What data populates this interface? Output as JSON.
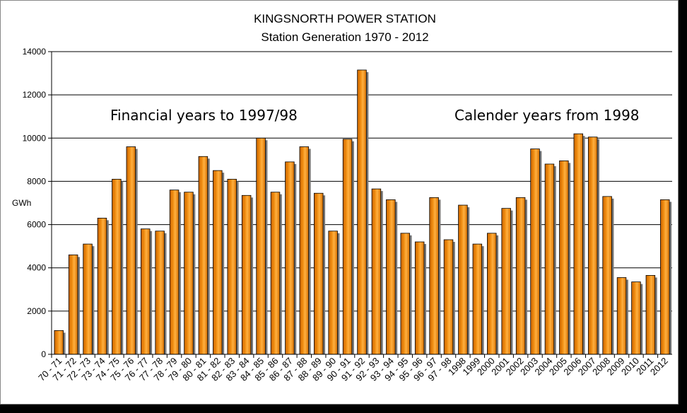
{
  "chart_data": {
    "type": "bar",
    "title": "KINGSNORTH POWER STATION",
    "subtitle": "Station Generation  1970 - 2012",
    "ylabel": "GWh",
    "xlabel": "",
    "ylim": [
      0,
      14000
    ],
    "yticks": [
      "0",
      "2000",
      "4000",
      "6000",
      "8000",
      "10000",
      "12000",
      "14000"
    ],
    "grid": true,
    "bar_color": "#f08c10",
    "annotations": [
      "Financial years to 1997/98",
      "Calender years from 1998"
    ],
    "categories": [
      "70 - 71",
      "71 - 72",
      "72 - 73",
      "73 - 74",
      "74 - 75",
      "75 - 76",
      "76 - 77",
      "77 - 78",
      "78 - 79",
      "79 - 80",
      "80 - 81",
      "81 - 82",
      "82 - 83",
      "83 - 84",
      "84 - 85",
      "85 - 86",
      "86 - 87",
      "87 - 88",
      "88 - 89",
      "89 - 90",
      "90 - 91",
      "91 - 92",
      "92 - 93",
      "93 - 94",
      "94 - 95",
      "95 - 96",
      "96 - 97",
      "97 - 98",
      "1998",
      "1999",
      "2000",
      "2001",
      "2002",
      "2003",
      "2004",
      "2005",
      "2006",
      "2007",
      "2008",
      "2009",
      "2010",
      "2011",
      "2012"
    ],
    "values": [
      1100,
      4600,
      5100,
      6300,
      8100,
      9600,
      5800,
      5700,
      7600,
      7500,
      9150,
      8500,
      8100,
      7350,
      10000,
      7500,
      8900,
      9600,
      7450,
      5700,
      9950,
      13150,
      7650,
      7150,
      5600,
      5200,
      7250,
      5300,
      6900,
      5100,
      5600,
      6750,
      7250,
      9500,
      8800,
      8950,
      10200,
      10050,
      7300,
      3550,
      3350,
      3650,
      7150
    ]
  }
}
